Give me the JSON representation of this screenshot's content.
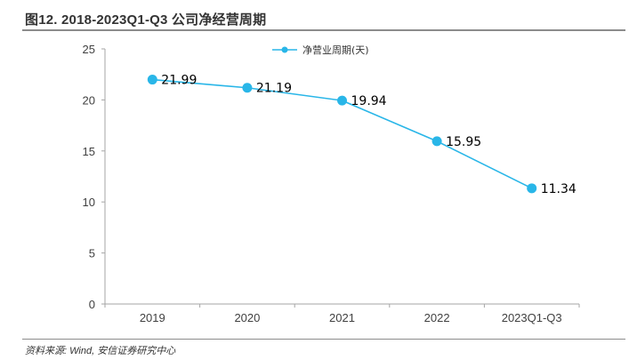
{
  "figure": {
    "title": "图12. 2018-2023Q1-Q3 公司净经营周期",
    "source": "资料来源: Wind, 安信证券研究中心"
  },
  "colors": {
    "series": "#29b6e8",
    "axis": "#a6a6a6",
    "text": "#404040"
  },
  "chart_data": {
    "type": "line",
    "title": "图12. 2018-2023Q1-Q3 公司净经营周期",
    "xlabel": "",
    "ylabel": "",
    "categories": [
      "2019",
      "2020",
      "2021",
      "2022",
      "2023Q1-Q3"
    ],
    "series": [
      {
        "name": "净营业周期(天)",
        "values": [
          21.99,
          21.19,
          19.94,
          15.95,
          11.34
        ],
        "labels": [
          "21.99",
          "21.19",
          "19.94",
          "15.95",
          "11.34"
        ]
      }
    ],
    "ylim": [
      0,
      25
    ],
    "yticks": [
      0,
      5,
      10,
      15,
      20,
      25
    ],
    "grid": false,
    "legend_position": "top-center",
    "data_labels": true
  }
}
